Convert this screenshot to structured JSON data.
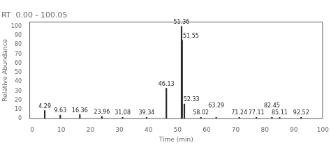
{
  "chart_data": {
    "type": "bar",
    "title": "RT  0.00 - 100.05",
    "xlabel": "Time (min)",
    "ylabel": "Relative Abundance",
    "x": [
      4.29,
      9.63,
      16.36,
      23.96,
      31.08,
      39.34,
      46.13,
      51.36,
      51.55,
      52.33,
      58.02,
      63.29,
      71.24,
      77.11,
      82.45,
      85.11,
      92.52
    ],
    "values": [
      9.0,
      4.0,
      4.5,
      2.5,
      1.5,
      1.5,
      33.0,
      100.0,
      85.0,
      16.0,
      1.5,
      1.5,
      1.5,
      1.5,
      1.5,
      1.5,
      1.5
    ],
    "annotations": [
      "4.29",
      "9.63",
      "16.36",
      "23.96",
      "31.08",
      "39.34",
      "46.13",
      "51.36",
      "51.55",
      "52.33",
      "58.02",
      "63.29",
      "71.24",
      "77.11",
      "82.45",
      "85.11",
      "92.52"
    ],
    "color": "#2a2a2a",
    "xlim": [
      -1,
      100
    ],
    "ylim": [
      0,
      105
    ],
    "xticks": [
      0,
      10,
      20,
      30,
      40,
      50,
      60,
      70,
      80,
      90,
      100
    ],
    "yticks": [
      0,
      10,
      20,
      30,
      40,
      50,
      60,
      70,
      80,
      90,
      100
    ],
    "grid": false
  }
}
